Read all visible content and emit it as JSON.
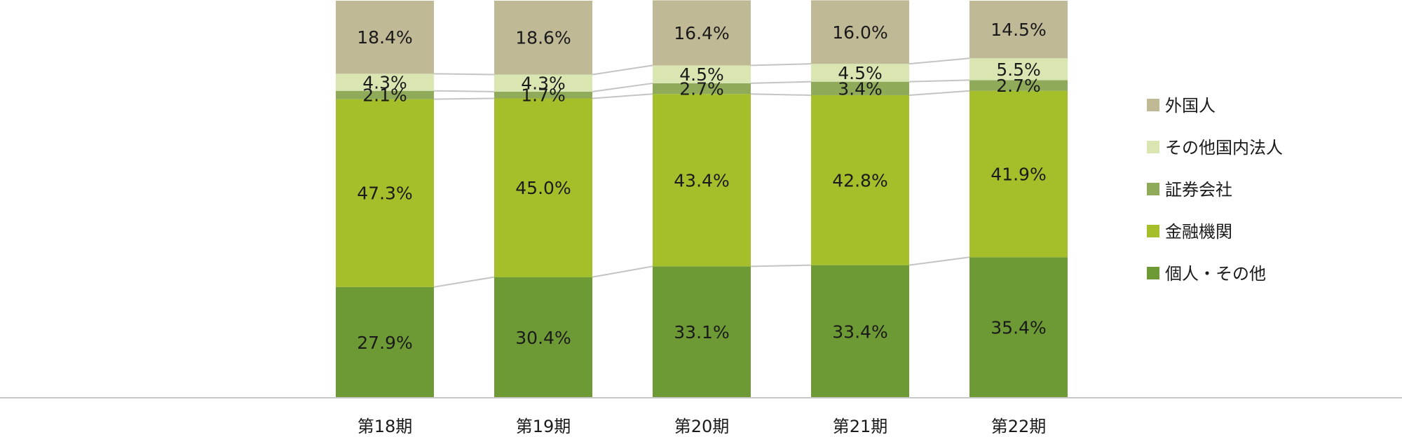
{
  "chart_data": {
    "type": "bar",
    "stacked": true,
    "percent": true,
    "categories": [
      "第18期",
      "第19期",
      "第20期",
      "第21期",
      "第22期"
    ],
    "series": [
      {
        "name": "個人・その他",
        "color": "#6e9a35",
        "values": [
          27.9,
          30.4,
          33.1,
          33.4,
          35.4
        ],
        "labels": [
          "27.9%",
          "30.4%",
          "33.1%",
          "33.4%",
          "35.4%"
        ]
      },
      {
        "name": "金融機関",
        "color": "#a5bf2a",
        "values": [
          47.3,
          45.0,
          43.4,
          42.8,
          41.9
        ],
        "labels": [
          "47.3%",
          "45.0%",
          "43.4%",
          "42.8%",
          "41.9%"
        ]
      },
      {
        "name": "証券会社",
        "color": "#8fab5a",
        "values": [
          2.1,
          1.7,
          2.7,
          3.4,
          2.7
        ],
        "labels": [
          "2.1%",
          "1.7%",
          "2.7%",
          "3.4%",
          "2.7%"
        ]
      },
      {
        "name": "その他国内法人",
        "color": "#d9e6b2",
        "values": [
          4.3,
          4.3,
          4.5,
          4.5,
          5.5
        ],
        "labels": [
          "4.3%",
          "4.3%",
          "4.5%",
          "4.5%",
          "5.5%"
        ]
      },
      {
        "name": "外国人",
        "color": "#bfb996",
        "values": [
          18.4,
          18.6,
          16.4,
          16.0,
          14.5
        ],
        "labels": [
          "18.4%",
          "18.6%",
          "16.4%",
          "16.0%",
          "14.5%"
        ]
      }
    ],
    "legend_order": [
      "外国人",
      "その他国内法人",
      "証券会社",
      "金融機関",
      "個人・その他"
    ],
    "connector_lines": true,
    "legend_position": "right",
    "ylim": [
      0,
      100
    ]
  }
}
